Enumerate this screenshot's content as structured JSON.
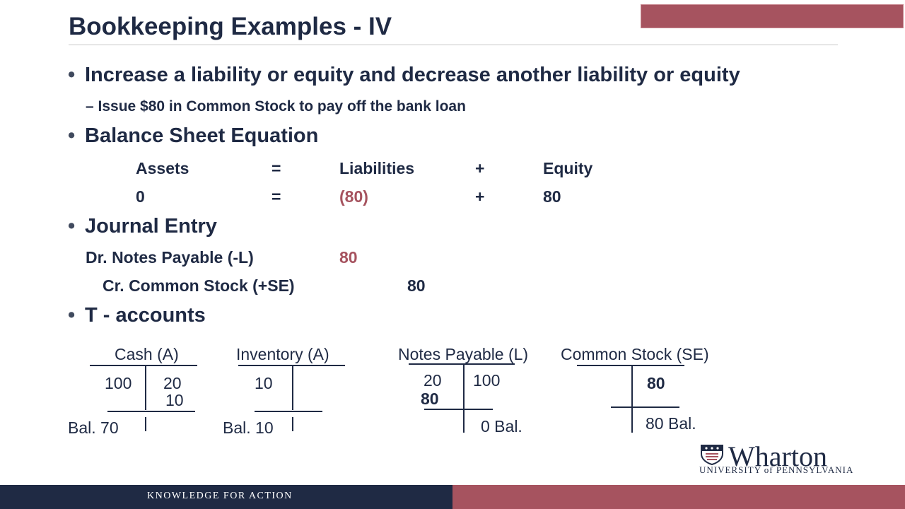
{
  "slide": {
    "title": "Bookkeeping Examples - IV",
    "footer": "KNOWLEDGE FOR ACTION"
  },
  "bullets": {
    "b1": "Increase a liability or equity and decrease another liability or equity",
    "b1_sub": "– Issue $80 in Common Stock to pay off the bank loan",
    "b2": "Balance Sheet Equation",
    "b3": "Journal Entry",
    "b4": "T - accounts"
  },
  "equation": {
    "headers": [
      "Assets",
      "=",
      "Liabilities",
      "+",
      "Equity"
    ],
    "values": [
      "0",
      "=",
      "(80)",
      "+",
      "80"
    ]
  },
  "journal": {
    "debit_label": "Dr. Notes Payable (-L)",
    "debit_amount": "80",
    "credit_label": "Cr. Common Stock (+SE)",
    "credit_amount": "80"
  },
  "t_accounts": {
    "cash": {
      "title": "Cash (A)",
      "debit": "100",
      "credit1": "20",
      "credit2": "10",
      "balance": "Bal. 70"
    },
    "inventory": {
      "title": "Inventory (A)",
      "debit": "10",
      "balance": "Bal. 10"
    },
    "notes": {
      "title": "Notes Payable (L)",
      "debit1": "20",
      "debit2": "80",
      "credit": "100",
      "balance": "0 Bal."
    },
    "stock": {
      "title": "Common Stock (SE)",
      "credit": "80",
      "balance": "80 Bal."
    }
  },
  "logo": {
    "name": "Wharton",
    "sub": "UNIVERSITY of PENNSYLVANIA"
  },
  "colors": {
    "navy": "#1f2a44",
    "accent": "#a6535f"
  }
}
